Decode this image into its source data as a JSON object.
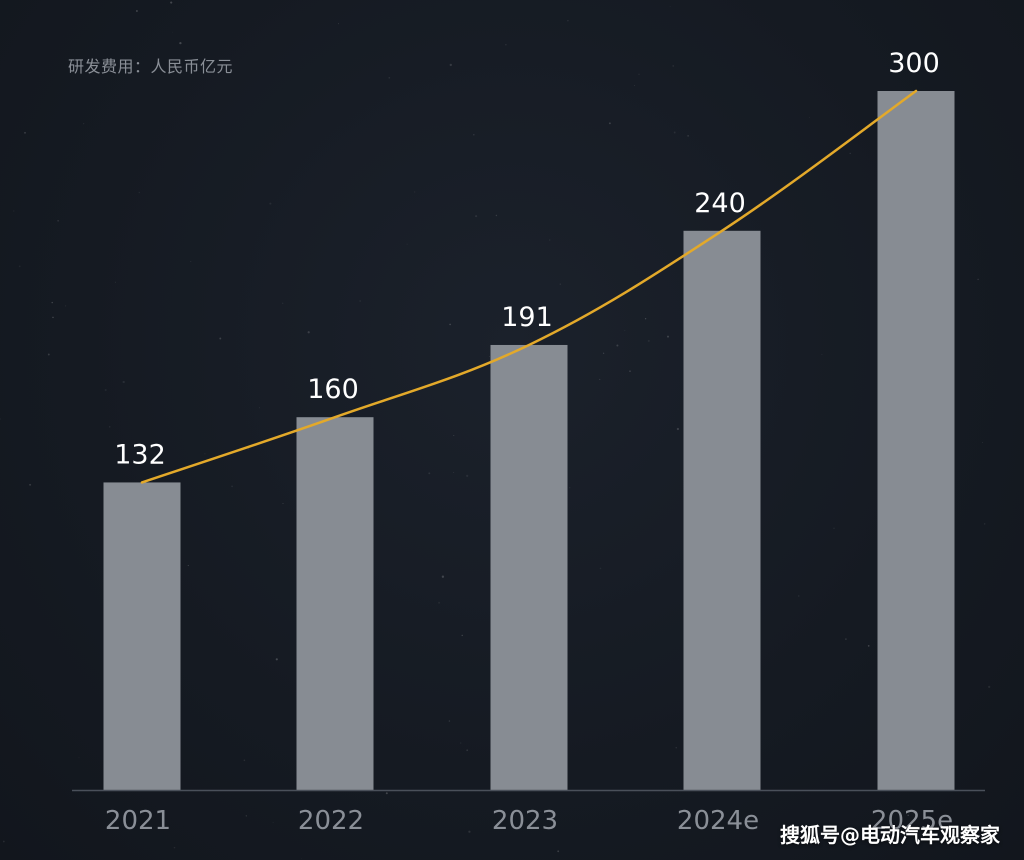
{
  "chart_data": {
    "type": "bar",
    "unit_label": "研发费用：人民币亿元",
    "categories": [
      "2021",
      "2022",
      "2023",
      "2024e",
      "2025e"
    ],
    "values": [
      132,
      160,
      191,
      240,
      300
    ],
    "ylim": [
      0,
      300
    ],
    "grid": false,
    "overlay_line": true,
    "colors": {
      "bar": "#878c93",
      "line": "#e3a92a",
      "value_label": "#ffffff",
      "tick_label": "#8a8f97",
      "axis": "#4a505a"
    }
  },
  "watermark": "搜狐号@电动汽车观察家"
}
